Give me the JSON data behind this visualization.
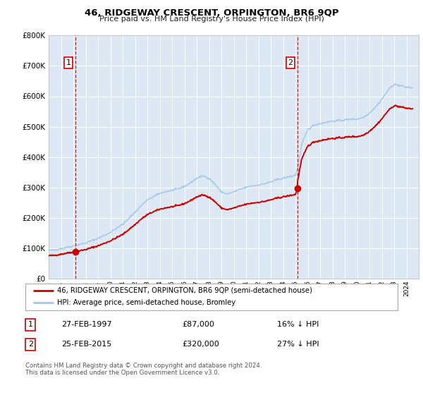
{
  "title": "46, RIDGEWAY CRESCENT, ORPINGTON, BR6 9QP",
  "subtitle": "Price paid vs. HM Land Registry's House Price Index (HPI)",
  "legend_label_red": "46, RIDGEWAY CRESCENT, ORPINGTON, BR6 9QP (semi-detached house)",
  "legend_label_blue": "HPI: Average price, semi-detached house, Bromley",
  "footnote_line1": "Contains HM Land Registry data © Crown copyright and database right 2024.",
  "footnote_line2": "This data is licensed under the Open Government Licence v3.0.",
  "annotation1_label": "1",
  "annotation1_date": "27-FEB-1997",
  "annotation1_price": "£87,000",
  "annotation1_hpi": "16% ↓ HPI",
  "annotation1_year": 1997.15,
  "annotation1_value": 87000,
  "annotation2_label": "2",
  "annotation2_date": "25-FEB-2015",
  "annotation2_price": "£320,000",
  "annotation2_hpi": "27% ↓ HPI",
  "annotation2_year": 2015.15,
  "annotation2_value": 320000,
  "background_color": "#dce9f5",
  "fig_bg_color": "#ffffff",
  "red_color": "#cc0000",
  "blue_color": "#a8c8e8",
  "vline_color": "#cc0000",
  "grid_color": "#ffffff",
  "ylim": [
    0,
    800000
  ],
  "yticks": [
    0,
    100000,
    200000,
    300000,
    400000,
    500000,
    600000,
    700000,
    800000
  ],
  "xmin": 1995,
  "xmax": 2025
}
